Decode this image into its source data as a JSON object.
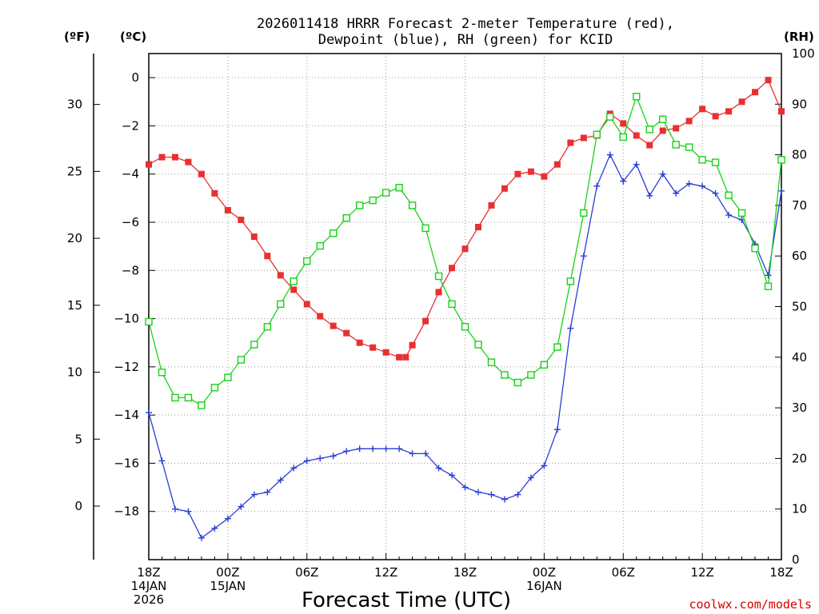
{
  "chart_data": {
    "type": "line",
    "title_line1": "2026011418 HRRR Forecast 2-meter Temperature (red),",
    "title_line2": "Dewpoint (blue), RH (green) for KCID",
    "xlabel": "Forecast Time (UTC)",
    "credit": "coolwx.com/models",
    "left_unit_f": "(ºF)",
    "left_unit_c": "(ºC)",
    "right_unit": "(RH)",
    "x_hours_range": [
      0,
      48
    ],
    "celsius_range": [
      -20,
      1
    ],
    "rh_range": [
      0,
      100
    ],
    "grid": true,
    "celsius_ticks": [
      0,
      -2,
      -4,
      -6,
      -8,
      -10,
      -12,
      -14,
      -16,
      -18
    ],
    "fahrenheit_ticks": [
      30,
      25,
      20,
      15,
      10,
      5,
      0
    ],
    "rh_ticks": [
      0,
      10,
      20,
      30,
      40,
      50,
      60,
      70,
      80,
      90,
      100
    ],
    "x_ticks": [
      {
        "hour": 0,
        "lines": [
          "18Z",
          "14JAN",
          "2026"
        ]
      },
      {
        "hour": 6,
        "lines": [
          "00Z",
          "15JAN"
        ]
      },
      {
        "hour": 12,
        "lines": [
          "06Z"
        ]
      },
      {
        "hour": 18,
        "lines": [
          "12Z"
        ]
      },
      {
        "hour": 24,
        "lines": [
          "18Z"
        ]
      },
      {
        "hour": 30,
        "lines": [
          "00Z",
          "16JAN"
        ]
      },
      {
        "hour": 36,
        "lines": [
          "06Z"
        ]
      },
      {
        "hour": 42,
        "lines": [
          "12Z"
        ]
      },
      {
        "hour": 48,
        "lines": [
          "18Z"
        ]
      }
    ],
    "series": [
      {
        "key": "temperature",
        "color": "#e83030",
        "marker": "filled-square",
        "axis": "celsius",
        "x": [
          0,
          1,
          2,
          3,
          4,
          5,
          6,
          7,
          8,
          9,
          10,
          11,
          12,
          13,
          14,
          15,
          16,
          17,
          18,
          19,
          19.5,
          20,
          21,
          22,
          23,
          24,
          25,
          26,
          27,
          28,
          29,
          30,
          31,
          32,
          33,
          34,
          35,
          36,
          37,
          38,
          39,
          40,
          41,
          42,
          43,
          44,
          45,
          46,
          47,
          48
        ],
        "values": [
          -3.6,
          -3.3,
          -3.3,
          -3.5,
          -4.0,
          -4.8,
          -5.5,
          -5.9,
          -6.6,
          -7.4,
          -8.2,
          -8.8,
          -9.4,
          -9.9,
          -10.3,
          -10.6,
          -11.0,
          -11.2,
          -11.4,
          -11.6,
          -11.6,
          -11.1,
          -10.1,
          -8.9,
          -7.9,
          -7.1,
          -6.2,
          -5.3,
          -4.6,
          -4.0,
          -3.9,
          -4.1,
          -3.6,
          -2.7,
          -2.5,
          -2.4,
          -1.5,
          -1.9,
          -2.4,
          -2.8,
          -2.2,
          -2.1,
          -1.8,
          -1.3,
          -1.6,
          -1.4,
          -1.0,
          -0.6,
          -0.1,
          -1.4
        ]
      },
      {
        "key": "dewpoint",
        "color": "#2a3ed6",
        "marker": "plus",
        "axis": "celsius",
        "x": [
          0,
          1,
          2,
          3,
          4,
          5,
          6,
          7,
          8,
          9,
          10,
          11,
          12,
          13,
          14,
          15,
          16,
          17,
          18,
          19,
          20,
          21,
          22,
          23,
          24,
          25,
          26,
          27,
          28,
          29,
          30,
          31,
          32,
          33,
          34,
          35,
          36,
          37,
          38,
          39,
          40,
          41,
          42,
          43,
          44,
          45,
          46,
          47,
          48
        ],
        "values": [
          -13.9,
          -15.9,
          -17.9,
          -18.0,
          -19.1,
          -18.7,
          -18.3,
          -17.8,
          -17.3,
          -17.2,
          -16.7,
          -16.2,
          -15.9,
          -15.8,
          -15.7,
          -15.5,
          -15.4,
          -15.4,
          -15.4,
          -15.4,
          -15.6,
          -15.6,
          -16.2,
          -16.5,
          -17.0,
          -17.2,
          -17.3,
          -17.5,
          -17.3,
          -16.6,
          -16.1,
          -14.6,
          -10.4,
          -7.4,
          -4.5,
          -3.2,
          -4.3,
          -3.6,
          -4.9,
          -4.0,
          -4.8,
          -4.4,
          -4.5,
          -4.8,
          -5.7,
          -5.9,
          -6.9,
          -8.2,
          -4.7
        ]
      },
      {
        "key": "rh",
        "color": "#19d119",
        "marker": "open-square",
        "axis": "rh",
        "x": [
          0,
          1,
          2,
          3,
          4,
          5,
          6,
          7,
          8,
          9,
          10,
          11,
          12,
          13,
          14,
          15,
          16,
          17,
          18,
          19,
          20,
          21,
          22,
          23,
          24,
          25,
          26,
          27,
          28,
          29,
          30,
          31,
          32,
          33,
          34,
          35,
          36,
          37,
          38,
          39,
          40,
          41,
          42,
          43,
          44,
          45,
          46,
          47,
          48
        ],
        "values": [
          47,
          37,
          32,
          32,
          30.5,
          34,
          36,
          39.5,
          42.5,
          46,
          50.5,
          55,
          59,
          62,
          64.5,
          67.5,
          70,
          71,
          72.5,
          73.5,
          70,
          65.5,
          56,
          50.5,
          46,
          42.5,
          39,
          36.5,
          35,
          36.5,
          38.5,
          42,
          55,
          68.5,
          84,
          87.5,
          83.5,
          91.5,
          85,
          87,
          82,
          81.5,
          79,
          78.5,
          72,
          68.5,
          61.5,
          54,
          79
        ]
      }
    ]
  }
}
